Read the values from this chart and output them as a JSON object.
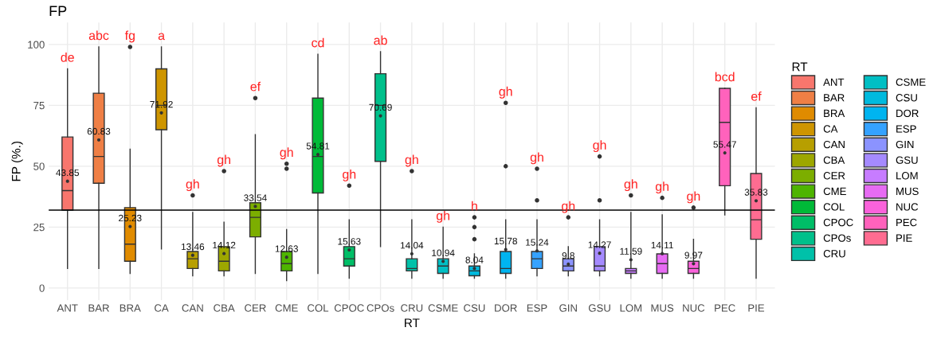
{
  "chart_data": {
    "type": "box",
    "title": "FP",
    "xlabel": "RT",
    "ylabel": "FP (%.)",
    "legend_title": "RT",
    "legend": "right",
    "grid": true,
    "categories": [
      "ANT",
      "BAR",
      "BRA",
      "CA",
      "CAN",
      "CBA",
      "CER",
      "CME",
      "COL",
      "CPOC",
      "CPOs",
      "CRU",
      "CSME",
      "CSU",
      "DOR",
      "ESP",
      "GIN",
      "GSU",
      "LOM",
      "MUS",
      "NUC",
      "PEC",
      "PIE"
    ],
    "series": [
      {
        "name": "ANT",
        "color": "#F8766D",
        "x": [
          "ANT"
        ],
        "boxes": [
          {
            "low": 8,
            "q1": 32,
            "median": 40,
            "q3": 62,
            "high": 90,
            "mean": 43.85
          }
        ],
        "value_labels": [
          "43.85"
        ]
      },
      {
        "name": "BAR",
        "color": "#EF7F45",
        "x": [
          "BAR"
        ],
        "boxes": [
          {
            "low": 8,
            "q1": 43,
            "median": 54,
            "q3": 80,
            "high": 99,
            "mean": 60.83
          }
        ],
        "value_labels": [
          "60.83"
        ]
      },
      {
        "name": "BRA",
        "color": "#E08B00",
        "x": [
          "BRA"
        ],
        "boxes": [
          {
            "low": 6,
            "q1": 11,
            "median": 18,
            "q3": 33,
            "high": 57,
            "mean": 25.23,
            "outliers": [
              99
            ]
          }
        ],
        "value_labels": [
          "25.23"
        ]
      },
      {
        "name": "CA",
        "color": "#CE9500",
        "x": [
          "CA"
        ],
        "boxes": [
          {
            "low": 16,
            "q1": 65,
            "median": 75,
            "q3": 90,
            "high": 99,
            "mean": 71.92
          }
        ],
        "value_labels": [
          "71.92"
        ]
      },
      {
        "name": "CAN",
        "color": "#B79F00",
        "x": [
          "CAN"
        ],
        "boxes": [
          {
            "low": 5,
            "q1": 8,
            "median": 12,
            "q3": 15,
            "high": 31,
            "mean": 13.46,
            "outliers": [
              38
            ]
          }
        ],
        "value_labels": [
          "13.46"
        ]
      },
      {
        "name": "CBA",
        "color": "#9DA700",
        "x": [
          "CBA"
        ],
        "boxes": [
          {
            "low": 5,
            "q1": 7,
            "median": 11,
            "q3": 17,
            "high": 27,
            "mean": 14.12,
            "outliers": [
              48
            ]
          }
        ],
        "value_labels": [
          "14.12"
        ]
      },
      {
        "name": "CER",
        "color": "#7CAE00",
        "x": [
          "CER"
        ],
        "boxes": [
          {
            "low": 6,
            "q1": 21,
            "median": 29,
            "q3": 35,
            "high": 63,
            "mean": 33.54,
            "outliers": [
              78
            ]
          }
        ],
        "value_labels": [
          "33.54"
        ]
      },
      {
        "name": "CME",
        "color": "#4EB400",
        "x": [
          "CME"
        ],
        "boxes": [
          {
            "low": 3,
            "q1": 7,
            "median": 10,
            "q3": 15,
            "high": 24,
            "mean": 12.63,
            "outliers": [
              49,
              51
            ]
          }
        ],
        "value_labels": [
          "12.63"
        ]
      },
      {
        "name": "COL",
        "color": "#00BA38",
        "x": [
          "COL"
        ],
        "boxes": [
          {
            "low": 6,
            "q1": 39,
            "median": 54,
            "q3": 78,
            "high": 96,
            "mean": 54.81
          }
        ],
        "value_labels": [
          "54.81"
        ]
      },
      {
        "name": "CPOC",
        "color": "#00BE67",
        "x": [
          "CPOC"
        ],
        "boxes": [
          {
            "low": 4,
            "q1": 9,
            "median": 12,
            "q3": 17,
            "high": 28,
            "mean": 15.63,
            "outliers": [
              42
            ]
          }
        ],
        "value_labels": [
          "15.63"
        ]
      },
      {
        "name": "CPOs",
        "color": "#00C08B",
        "x": [
          "CPOs"
        ],
        "boxes": [
          {
            "low": 17,
            "q1": 52,
            "median": 75,
            "q3": 88,
            "high": 97,
            "mean": 70.69
          }
        ],
        "value_labels": [
          "70.69"
        ]
      },
      {
        "name": "CRU",
        "color": "#00C1A9",
        "x": [
          "CRU"
        ],
        "boxes": [
          {
            "low": 4,
            "q1": 7,
            "median": 8,
            "q3": 12,
            "high": 28,
            "mean": 14.04,
            "outliers": [
              48
            ]
          }
        ],
        "value_labels": [
          "14.04"
        ]
      },
      {
        "name": "CSME",
        "color": "#00BFC4",
        "x": [
          "CSME"
        ],
        "boxes": [
          {
            "low": 4,
            "q1": 6,
            "median": 9,
            "q3": 12,
            "high": 25,
            "mean": 10.94
          }
        ],
        "value_labels": [
          "10.94"
        ]
      },
      {
        "name": "CSU",
        "color": "#00BADE",
        "x": [
          "CSU"
        ],
        "boxes": [
          {
            "low": 4,
            "q1": 5,
            "median": 7,
            "q3": 9,
            "high": 14,
            "mean": 8.04,
            "outliers": [
              20,
              25,
              29
            ]
          }
        ],
        "value_labels": [
          "8.04"
        ]
      },
      {
        "name": "DOR",
        "color": "#00B4F0",
        "x": [
          "DOR"
        ],
        "boxes": [
          {
            "low": 4,
            "q1": 6,
            "median": 8,
            "q3": 15,
            "high": 28,
            "mean": 15.78,
            "outliers": [
              50,
              76
            ]
          }
        ],
        "value_labels": [
          "15.78"
        ]
      },
      {
        "name": "ESP",
        "color": "#35A2FF",
        "x": [
          "ESP"
        ],
        "boxes": [
          {
            "low": 5,
            "q1": 8,
            "median": 12,
            "q3": 15,
            "high": 28,
            "mean": 15.24,
            "outliers": [
              36,
              49
            ]
          }
        ],
        "value_labels": [
          "15.24"
        ]
      },
      {
        "name": "GIN",
        "color": "#8B93FF",
        "x": [
          "GIN"
        ],
        "boxes": [
          {
            "low": 5,
            "q1": 7,
            "median": 9,
            "q3": 12,
            "high": 17,
            "mean": 9.8,
            "outliers": [
              29
            ]
          }
        ],
        "value_labels": [
          "9.8"
        ]
      },
      {
        "name": "GSU",
        "color": "#A58AFF",
        "x": [
          "GSU"
        ],
        "boxes": [
          {
            "low": 5,
            "q1": 7,
            "median": 9,
            "q3": 17,
            "high": 28,
            "mean": 14.27,
            "outliers": [
              36,
              54
            ]
          }
        ],
        "value_labels": [
          "14.27"
        ]
      },
      {
        "name": "LOM",
        "color": "#C77CFF",
        "x": [
          "LOM"
        ],
        "boxes": [
          {
            "low": 4,
            "q1": 6,
            "median": 7,
            "q3": 8,
            "high": 31,
            "mean": 11.59,
            "outliers": [
              38
            ]
          }
        ],
        "value_labels": [
          "11.59"
        ]
      },
      {
        "name": "MUS",
        "color": "#E76BF3",
        "x": [
          "MUS"
        ],
        "boxes": [
          {
            "low": 4,
            "q1": 6,
            "median": 10,
            "q3": 14,
            "high": 30,
            "mean": 14.11,
            "outliers": [
              37
            ]
          }
        ],
        "value_labels": [
          "14.11"
        ]
      },
      {
        "name": "NUC",
        "color": "#FA62DB",
        "x": [
          "NUC"
        ],
        "boxes": [
          {
            "low": 4,
            "q1": 6,
            "median": 8,
            "q3": 11,
            "high": 20,
            "mean": 9.97,
            "outliers": [
              33
            ]
          }
        ],
        "value_labels": [
          "9.97"
        ]
      },
      {
        "name": "PEC",
        "color": "#FF62BC",
        "x": [
          "PEC"
        ],
        "boxes": [
          {
            "low": 30,
            "q1": 42,
            "median": 68,
            "q3": 82,
            "high": 82,
            "mean": 55.47
          }
        ],
        "value_labels": [
          "55.47"
        ]
      },
      {
        "name": "PIE",
        "color": "#FF6C91",
        "x": [
          "PIE"
        ],
        "boxes": [
          {
            "low": 4,
            "q1": 20,
            "median": 28,
            "q3": 47,
            "high": 74,
            "mean": 35.83
          }
        ],
        "value_labels": [
          "35.83"
        ]
      }
    ],
    "ref_lines": [
      {
        "axis": "y",
        "value": 32,
        "color": "#000000"
      }
    ],
    "ylim": [
      -5,
      109
    ],
    "yticks": [
      0,
      25,
      50,
      75,
      100
    ],
    "annotations": [
      "de",
      "abc",
      "fg",
      "a",
      "gh",
      "gh",
      "ef",
      "gh",
      "cd",
      "gh",
      "ab",
      "gh",
      "gh",
      "h",
      "gh",
      "gh",
      "gh",
      "gh",
      "gh",
      "gh",
      "gh",
      "bcd",
      "ef"
    ]
  }
}
